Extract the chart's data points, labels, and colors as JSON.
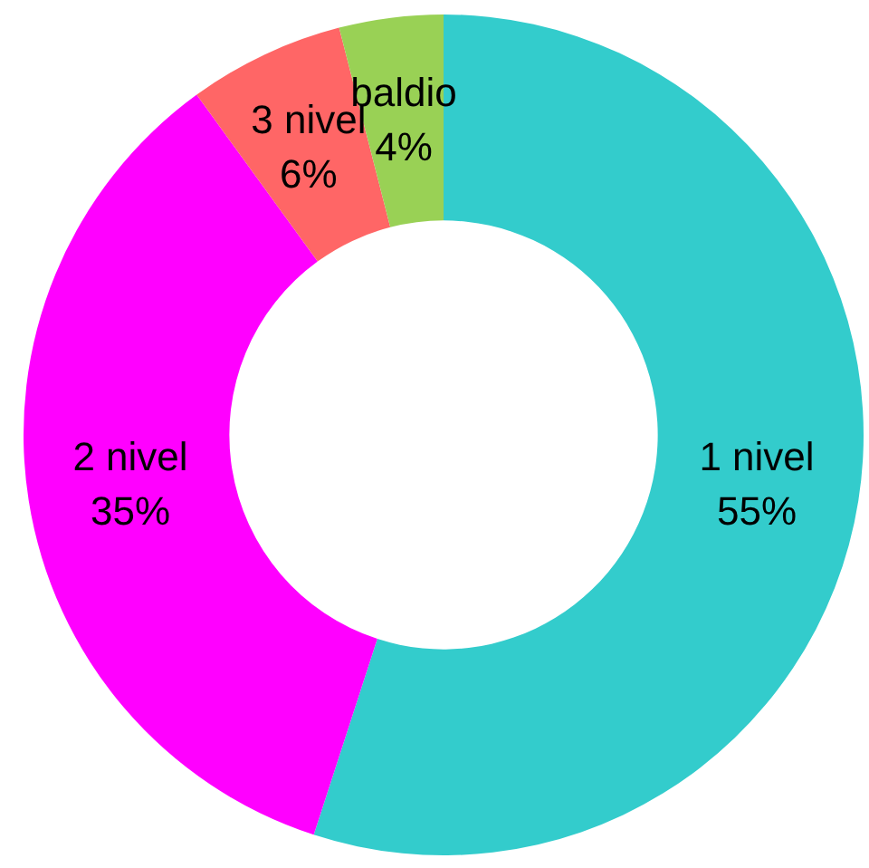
{
  "chart_data": {
    "type": "donut",
    "categories": [
      "1 nivel",
      "2 nivel",
      "3 nivel",
      "baldio"
    ],
    "values": [
      55,
      35,
      6,
      4
    ],
    "value_labels": [
      "55%",
      "35%",
      "6%",
      "4%"
    ],
    "colors": [
      "#33cccc",
      "#ff00ff",
      "#ff6666",
      "#99d155"
    ],
    "legend": false
  }
}
